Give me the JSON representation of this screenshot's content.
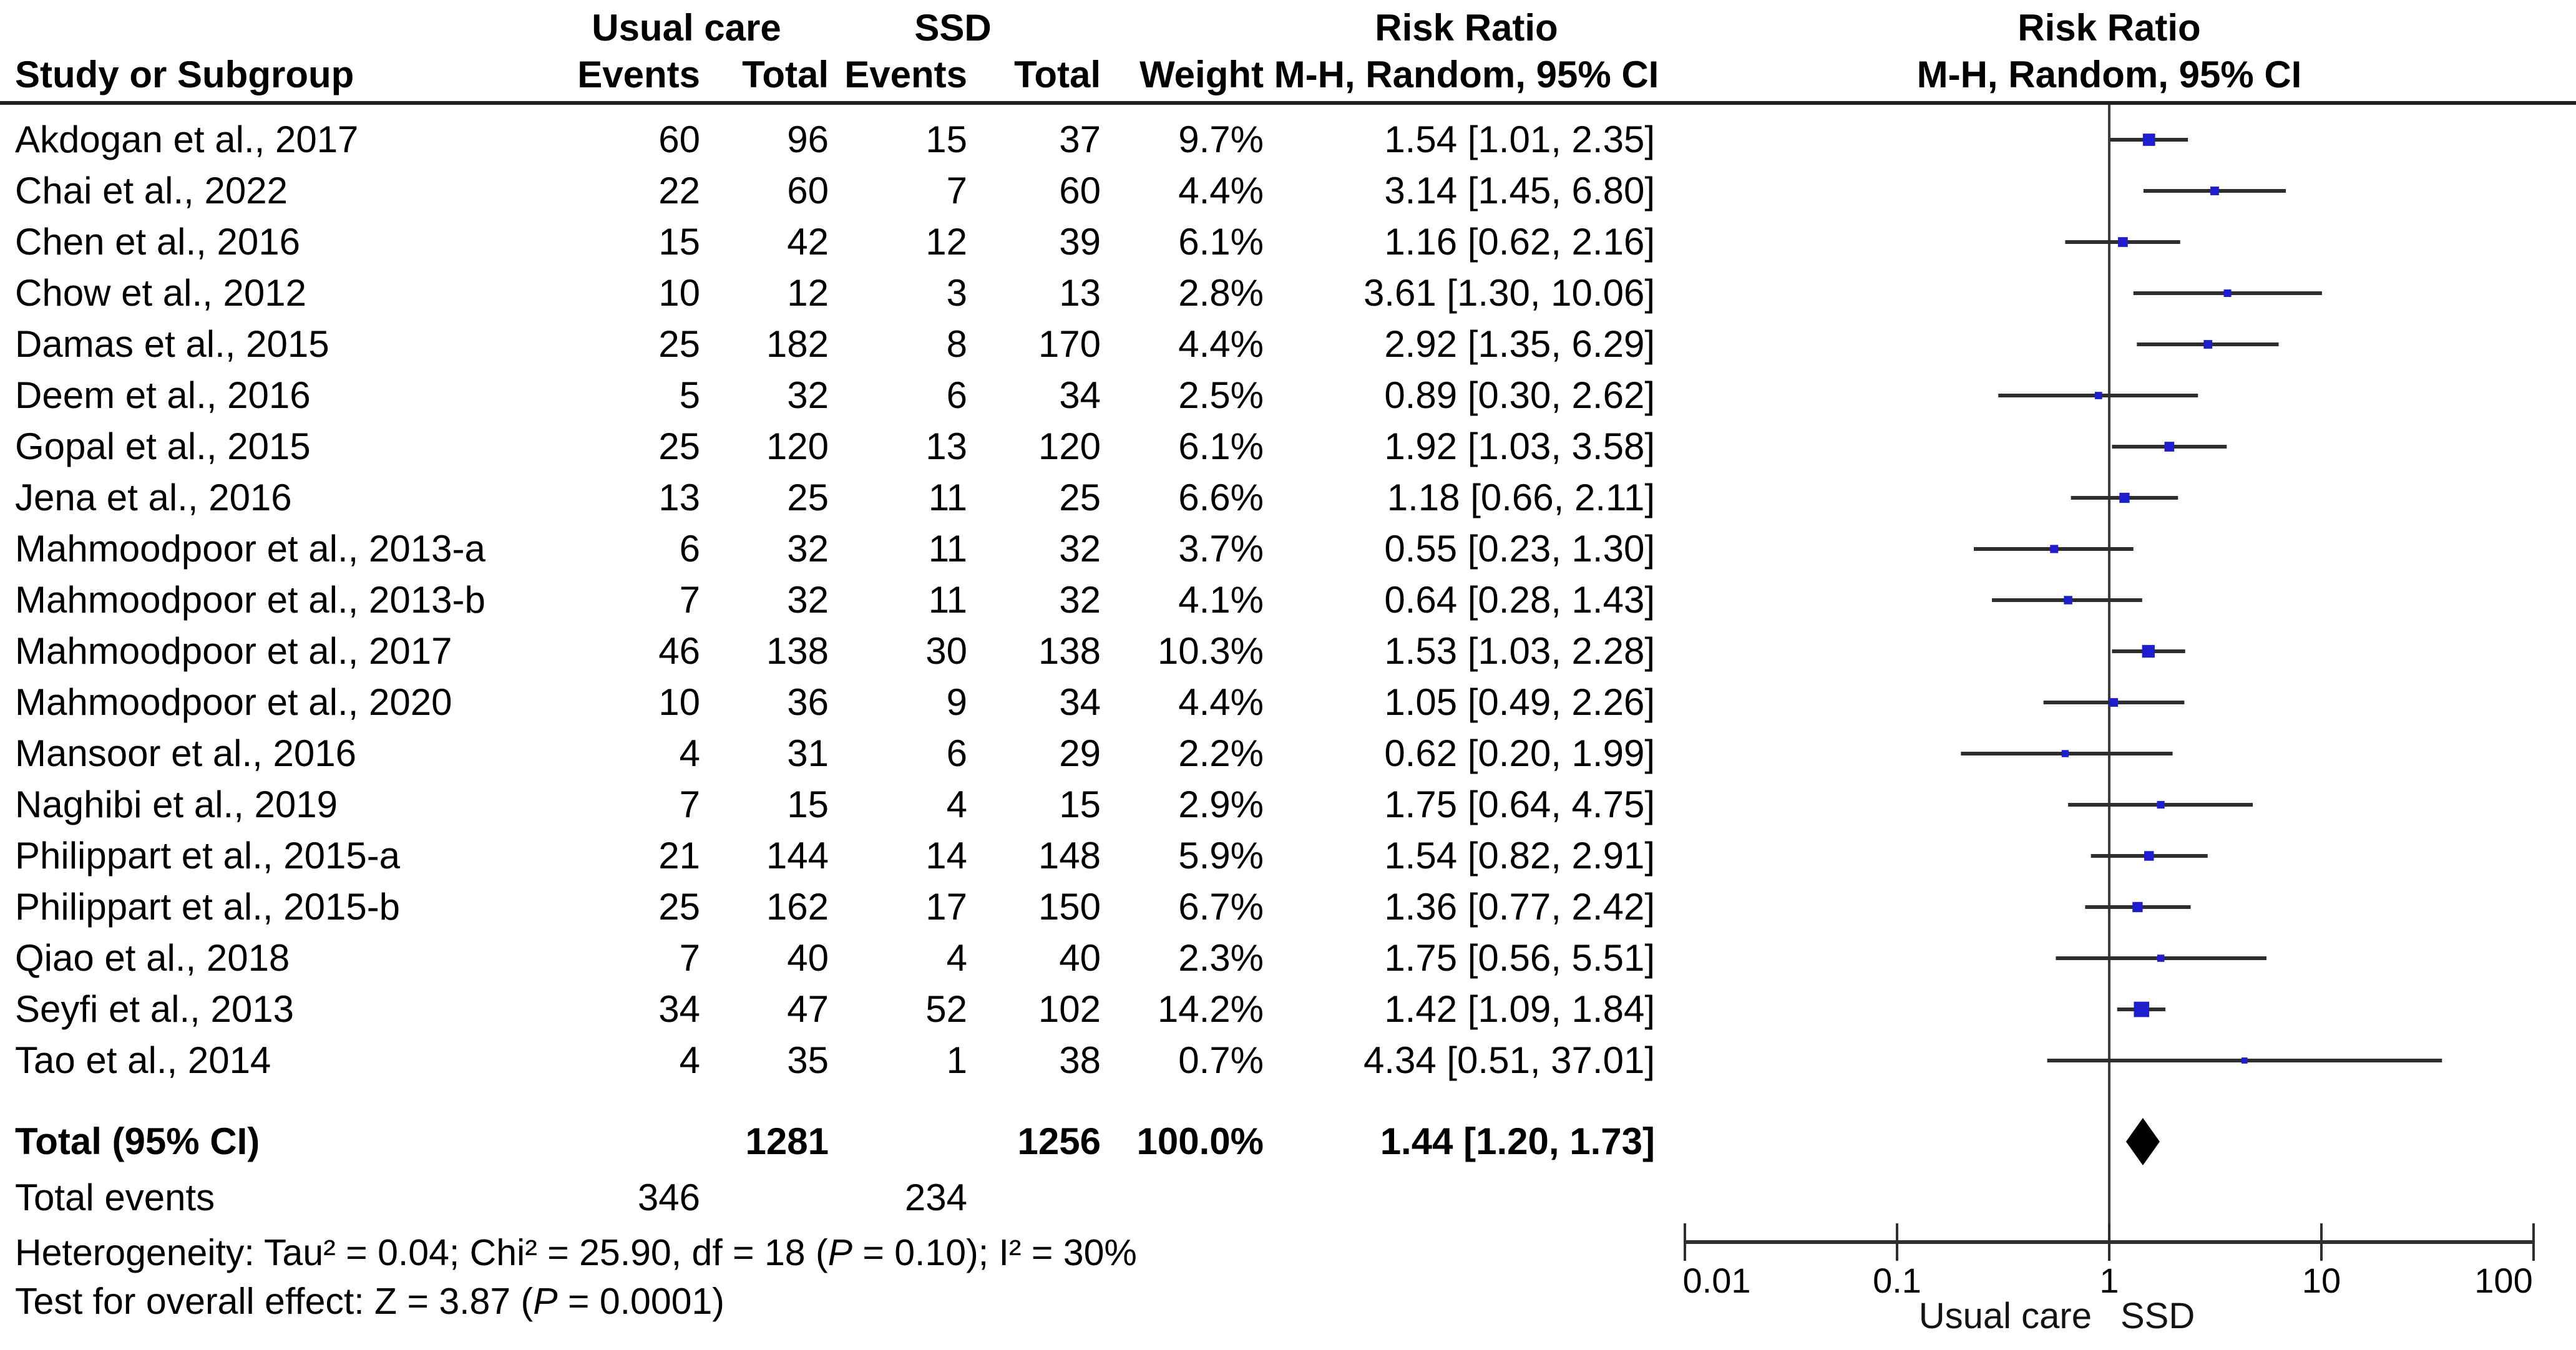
{
  "header": {
    "study_col": "Study or Subgroup",
    "uc_group": "Usual care",
    "ssd_group": "SSD",
    "events": "Events",
    "total": "Total",
    "weight": "Weight",
    "rr_group": "Risk Ratio",
    "mh_label": "M-H, Random, 95% CI"
  },
  "footnotes": {
    "het_pre": "Heterogeneity: Tau² = 0.04; Chi² = 25.90, df = 18 (",
    "het_p": "P",
    "het_post": " = 0.10); I² = 30%",
    "eff_pre": "Test for overall effect: Z = 3.87 (",
    "eff_p": "P",
    "eff_post": " = 0.0001)"
  },
  "axis": {
    "ticks": [
      {
        "label": "0.01",
        "value": 0.01,
        "dx": 51
      },
      {
        "label": "0.1",
        "value": 0.1,
        "dx": 0
      },
      {
        "label": "1",
        "value": 1,
        "dx": 0
      },
      {
        "label": "10",
        "value": 10,
        "dx": 0
      },
      {
        "label": "100",
        "value": 100,
        "dx": -48
      }
    ],
    "left_label": "Usual care",
    "right_label": "SSD"
  },
  "colors": {
    "square": "#1e1ecd",
    "diamond": "#000000",
    "ci_line": "#2e2e2e",
    "axis": "#2e2e2e",
    "center_line": "#3c3c3c",
    "rule": "#1f1f1f"
  },
  "chart_data": {
    "type": "scatter",
    "subtype": "forest-plot",
    "effect_measure": "Risk Ratio",
    "method": "M-H, Random, 95% CI",
    "x_scale": "log10",
    "x_ticks": [
      0.01,
      0.1,
      1,
      10,
      100
    ],
    "favors_left": "Usual care",
    "favors_right": "SSD",
    "studies": [
      {
        "study": "Akdogan et al., 2017",
        "uc_events": "60",
        "uc_total": "96",
        "ssd_events": "15",
        "ssd_total": "37",
        "weight_pct": 9.7,
        "weight_label": "9.7%",
        "rr": 1.54,
        "ci_low": 1.01,
        "ci_high": 2.35,
        "rr_label": "1.54 [1.01, 2.35]"
      },
      {
        "study": "Chai et al., 2022",
        "uc_events": "22",
        "uc_total": "60",
        "ssd_events": "7",
        "ssd_total": "60",
        "weight_pct": 4.4,
        "weight_label": "4.4%",
        "rr": 3.14,
        "ci_low": 1.45,
        "ci_high": 6.8,
        "rr_label": "3.14 [1.45, 6.80]"
      },
      {
        "study": "Chen et al., 2016",
        "uc_events": "15",
        "uc_total": "42",
        "ssd_events": "12",
        "ssd_total": "39",
        "weight_pct": 6.1,
        "weight_label": "6.1%",
        "rr": 1.16,
        "ci_low": 0.62,
        "ci_high": 2.16,
        "rr_label": "1.16 [0.62, 2.16]"
      },
      {
        "study": "Chow et al., 2012",
        "uc_events": "10",
        "uc_total": "12",
        "ssd_events": "3",
        "ssd_total": "13",
        "weight_pct": 2.8,
        "weight_label": "2.8%",
        "rr": 3.61,
        "ci_low": 1.3,
        "ci_high": 10.06,
        "rr_label": "3.61 [1.30, 10.06]"
      },
      {
        "study": "Damas et al., 2015",
        "uc_events": "25",
        "uc_total": "182",
        "ssd_events": "8",
        "ssd_total": "170",
        "weight_pct": 4.4,
        "weight_label": "4.4%",
        "rr": 2.92,
        "ci_low": 1.35,
        "ci_high": 6.29,
        "rr_label": "2.92 [1.35, 6.29]"
      },
      {
        "study": "Deem et al., 2016",
        "uc_events": "5",
        "uc_total": "32",
        "ssd_events": "6",
        "ssd_total": "34",
        "weight_pct": 2.5,
        "weight_label": "2.5%",
        "rr": 0.89,
        "ci_low": 0.3,
        "ci_high": 2.62,
        "rr_label": "0.89 [0.30, 2.62]"
      },
      {
        "study": "Gopal et al., 2015",
        "uc_events": "25",
        "uc_total": "120",
        "ssd_events": "13",
        "ssd_total": "120",
        "weight_pct": 6.1,
        "weight_label": "6.1%",
        "rr": 1.92,
        "ci_low": 1.03,
        "ci_high": 3.58,
        "rr_label": "1.92 [1.03, 3.58]"
      },
      {
        "study": "Jena et al., 2016",
        "uc_events": "13",
        "uc_total": "25",
        "ssd_events": "11",
        "ssd_total": "25",
        "weight_pct": 6.6,
        "weight_label": "6.6%",
        "rr": 1.18,
        "ci_low": 0.66,
        "ci_high": 2.11,
        "rr_label": "1.18 [0.66, 2.11]"
      },
      {
        "study": "Mahmoodpoor et al., 2013-a",
        "uc_events": "6",
        "uc_total": "32",
        "ssd_events": "11",
        "ssd_total": "32",
        "weight_pct": 3.7,
        "weight_label": "3.7%",
        "rr": 0.55,
        "ci_low": 0.23,
        "ci_high": 1.3,
        "rr_label": "0.55 [0.23, 1.30]"
      },
      {
        "study": "Mahmoodpoor et al., 2013-b",
        "uc_events": "7",
        "uc_total": "32",
        "ssd_events": "11",
        "ssd_total": "32",
        "weight_pct": 4.1,
        "weight_label": "4.1%",
        "rr": 0.64,
        "ci_low": 0.28,
        "ci_high": 1.43,
        "rr_label": "0.64 [0.28, 1.43]"
      },
      {
        "study": "Mahmoodpoor et al., 2017",
        "uc_events": "46",
        "uc_total": "138",
        "ssd_events": "30",
        "ssd_total": "138",
        "weight_pct": 10.3,
        "weight_label": "10.3%",
        "rr": 1.53,
        "ci_low": 1.03,
        "ci_high": 2.28,
        "rr_label": "1.53 [1.03, 2.28]"
      },
      {
        "study": "Mahmoodpoor et al., 2020",
        "uc_events": "10",
        "uc_total": "36",
        "ssd_events": "9",
        "ssd_total": "34",
        "weight_pct": 4.4,
        "weight_label": "4.4%",
        "rr": 1.05,
        "ci_low": 0.49,
        "ci_high": 2.26,
        "rr_label": "1.05 [0.49, 2.26]"
      },
      {
        "study": "Mansoor et al., 2016",
        "uc_events": "4",
        "uc_total": "31",
        "ssd_events": "6",
        "ssd_total": "29",
        "weight_pct": 2.2,
        "weight_label": "2.2%",
        "rr": 0.62,
        "ci_low": 0.2,
        "ci_high": 1.99,
        "rr_label": "0.62 [0.20, 1.99]"
      },
      {
        "study": "Naghibi et al., 2019",
        "uc_events": "7",
        "uc_total": "15",
        "ssd_events": "4",
        "ssd_total": "15",
        "weight_pct": 2.9,
        "weight_label": "2.9%",
        "rr": 1.75,
        "ci_low": 0.64,
        "ci_high": 4.75,
        "rr_label": "1.75 [0.64, 4.75]"
      },
      {
        "study": "Philippart et al., 2015-a",
        "uc_events": "21",
        "uc_total": "144",
        "ssd_events": "14",
        "ssd_total": "148",
        "weight_pct": 5.9,
        "weight_label": "5.9%",
        "rr": 1.54,
        "ci_low": 0.82,
        "ci_high": 2.91,
        "rr_label": "1.54 [0.82, 2.91]"
      },
      {
        "study": "Philippart et al., 2015-b",
        "uc_events": "25",
        "uc_total": "162",
        "ssd_events": "17",
        "ssd_total": "150",
        "weight_pct": 6.7,
        "weight_label": "6.7%",
        "rr": 1.36,
        "ci_low": 0.77,
        "ci_high": 2.42,
        "rr_label": "1.36 [0.77, 2.42]"
      },
      {
        "study": "Qiao et al., 2018",
        "uc_events": "7",
        "uc_total": "40",
        "ssd_events": "4",
        "ssd_total": "40",
        "weight_pct": 2.3,
        "weight_label": "2.3%",
        "rr": 1.75,
        "ci_low": 0.56,
        "ci_high": 5.51,
        "rr_label": "1.75 [0.56, 5.51]"
      },
      {
        "study": "Seyfi et al., 2013",
        "uc_events": "34",
        "uc_total": "47",
        "ssd_events": "52",
        "ssd_total": "102",
        "weight_pct": 14.2,
        "weight_label": "14.2%",
        "rr": 1.42,
        "ci_low": 1.09,
        "ci_high": 1.84,
        "rr_label": "1.42 [1.09, 1.84]"
      },
      {
        "study": "Tao et al., 2014",
        "uc_events": "4",
        "uc_total": "35",
        "ssd_events": "1",
        "ssd_total": "38",
        "weight_pct": 0.7,
        "weight_label": "0.7%",
        "rr": 4.34,
        "ci_low": 0.51,
        "ci_high": 37.01,
        "rr_label": "4.34 [0.51, 37.01]"
      }
    ],
    "total": {
      "label": "Total (95% CI)",
      "uc_total": "1281",
      "ssd_total": "1256",
      "weight_label": "100.0%",
      "rr": 1.44,
      "ci_low": 1.2,
      "ci_high": 1.73,
      "rr_label": "1.44 [1.20, 1.73]"
    },
    "total_events": {
      "label": "Total events",
      "uc": "346",
      "ssd": "234"
    }
  }
}
